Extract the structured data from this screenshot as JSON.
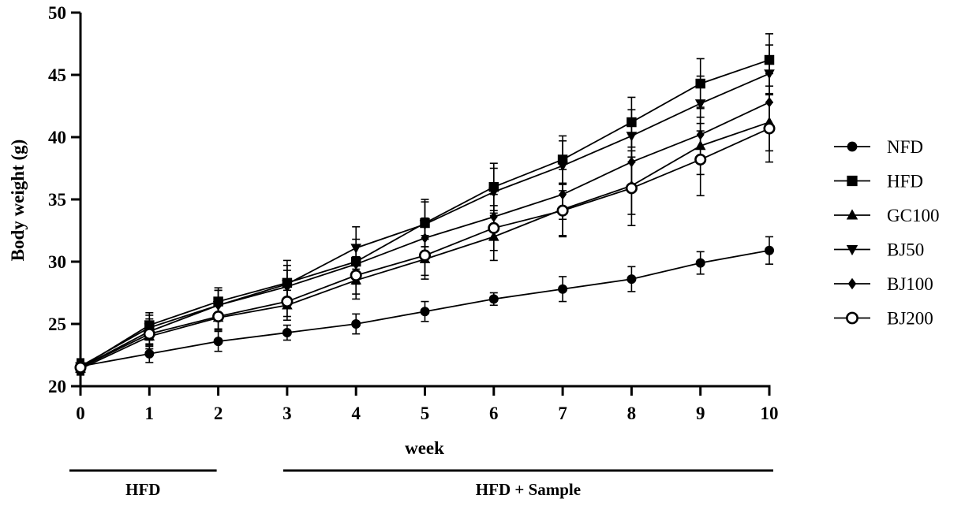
{
  "chart_data": {
    "type": "line",
    "xlabel": "week",
    "ylabel": "Body weight (g)",
    "x": [
      0,
      1,
      2,
      3,
      4,
      5,
      6,
      7,
      8,
      9,
      10
    ],
    "xlim": [
      0,
      10
    ],
    "ylim": [
      20,
      50
    ],
    "x_ticks": [
      "0",
      "1",
      "2",
      "3",
      "4",
      "5",
      "6",
      "7",
      "8",
      "9",
      "10"
    ],
    "y_ticks": [
      "20",
      "25",
      "30",
      "35",
      "40",
      "45",
      "50"
    ],
    "grid": false,
    "legend_position": "right",
    "error_bars": true,
    "series": [
      {
        "name": "NFD",
        "marker": "filled-circle",
        "values": [
          21.6,
          22.6,
          23.6,
          24.3,
          25.0,
          26.0,
          27.0,
          27.8,
          28.6,
          29.9,
          30.9
        ],
        "errors": [
          0.5,
          0.7,
          0.8,
          0.6,
          0.8,
          0.8,
          0.5,
          1.0,
          1.0,
          0.9,
          1.1
        ]
      },
      {
        "name": "HFD",
        "marker": "filled-square",
        "values": [
          21.5,
          24.9,
          26.8,
          28.3,
          30.0,
          33.1,
          36.0,
          38.2,
          41.2,
          44.3,
          46.2
        ],
        "errors": [
          0.6,
          1.0,
          1.1,
          1.8,
          1.8,
          1.9,
          1.9,
          1.9,
          2.0,
          2.0,
          2.1
        ]
      },
      {
        "name": "GC100",
        "marker": "filled-triangle-up",
        "values": [
          21.4,
          24.0,
          25.5,
          26.5,
          28.5,
          30.2,
          32.0,
          34.2,
          36.1,
          39.3,
          41.2
        ],
        "errors": [
          0.5,
          1.0,
          1.0,
          1.2,
          1.5,
          1.6,
          1.9,
          2.1,
          2.3,
          2.3,
          2.3
        ]
      },
      {
        "name": "BJ50",
        "marker": "filled-triangle-down",
        "values": [
          21.6,
          24.7,
          26.5,
          28.2,
          31.1,
          33.0,
          35.6,
          37.7,
          40.1,
          42.7,
          45.1
        ],
        "errors": [
          0.6,
          1.0,
          1.2,
          1.5,
          1.7,
          1.8,
          1.9,
          2.0,
          2.1,
          2.2,
          2.3
        ]
      },
      {
        "name": "BJ100",
        "marker": "filled-diamond",
        "values": [
          21.5,
          24.4,
          26.5,
          28.0,
          29.8,
          31.9,
          33.6,
          35.4,
          38.0,
          40.2,
          42.8
        ],
        "errors": [
          0.5,
          1.0,
          1.2,
          1.3,
          1.5,
          1.6,
          1.8,
          2.0,
          2.2,
          2.2,
          2.3
        ]
      },
      {
        "name": "BJ200",
        "marker": "open-circle",
        "values": [
          21.5,
          24.2,
          25.6,
          26.8,
          28.9,
          30.5,
          32.7,
          34.1,
          35.9,
          38.2,
          40.7
        ],
        "errors": [
          0.5,
          1.0,
          1.0,
          1.2,
          1.5,
          1.6,
          1.8,
          2.1,
          3.0,
          2.9,
          2.7
        ]
      }
    ],
    "periods": [
      {
        "label": "HFD",
        "from": 0,
        "to": 2
      },
      {
        "label": "HFD + Sample",
        "from": 3,
        "to": 10
      }
    ]
  }
}
